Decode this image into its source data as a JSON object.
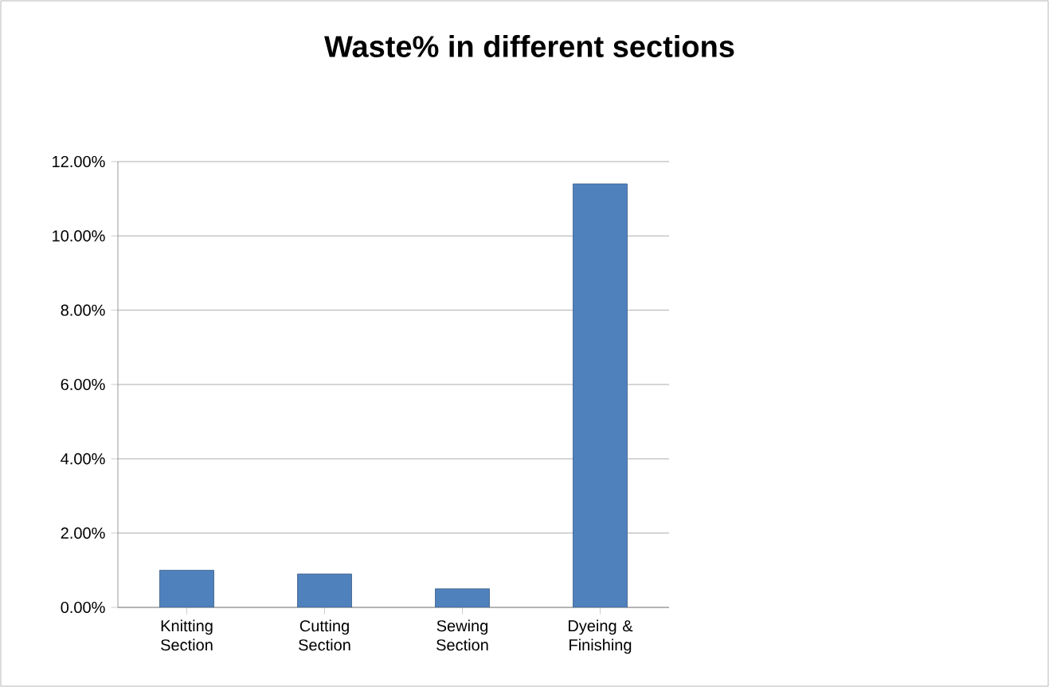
{
  "chart_data": {
    "type": "bar",
    "title": "Waste% in different sections",
    "categories": [
      "Knitting Section",
      "Cutting Section",
      "Sewing Section",
      "Dyeing & Finishing"
    ],
    "values": [
      1.0,
      0.9,
      0.5,
      11.4
    ],
    "color": "#4f81bd",
    "ylim": [
      0,
      12
    ],
    "yticks": [
      {
        "value": 0,
        "label": "0.00%"
      },
      {
        "value": 2,
        "label": "2.00%"
      },
      {
        "value": 4,
        "label": "4.00%"
      },
      {
        "value": 6,
        "label": "6.00%"
      },
      {
        "value": 8,
        "label": "8.00%"
      },
      {
        "value": 10,
        "label": "10.00%"
      },
      {
        "value": 12,
        "label": "12.00%"
      }
    ],
    "grid": "y"
  }
}
